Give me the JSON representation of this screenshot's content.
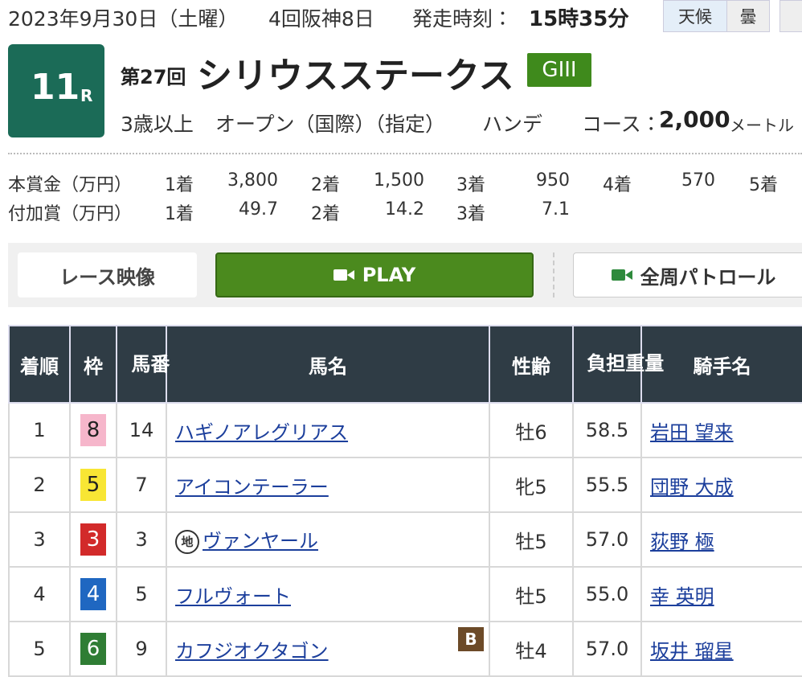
{
  "header": {
    "date": "2023年9月30日（土曜）",
    "meeting": "4回阪神8日",
    "start_label": "発走時刻：",
    "start_time": "15時35分",
    "weather_label": "天候",
    "weather": "曇"
  },
  "race": {
    "number": "11",
    "number_unit": "R",
    "edition": "第27回",
    "name": "シリウスステークス",
    "grade": "GIII",
    "age": "3歳以上",
    "class": "オープン（国際）（指定）",
    "weight_rule": "ハンデ",
    "course_label": "コース：",
    "distance": "2,000",
    "distance_unit": "メートル"
  },
  "prizes": [
    {
      "label": "本賞金（万円）",
      "items": [
        [
          "1着",
          "3,800"
        ],
        [
          "2着",
          "1,500"
        ],
        [
          "3着",
          "950"
        ],
        [
          "4着",
          "570"
        ],
        [
          "5着"
        ]
      ]
    },
    {
      "label": "付加賞（万円）",
      "items": [
        [
          "1着",
          "49.7"
        ],
        [
          "2着",
          "14.2"
        ],
        [
          "3着",
          "7.1"
        ]
      ]
    }
  ],
  "video": {
    "title": "レース映像",
    "play": "PLAY",
    "patrol": "全周パトロール"
  },
  "table": {
    "columns": [
      "着順",
      "枠",
      "馬番",
      "馬名",
      "性齢",
      "負担重量",
      "騎手名"
    ],
    "rows": [
      {
        "place": "1",
        "frame": "8",
        "number": "14",
        "horse": "ハギノアレグリアス",
        "sex_age": "牡6",
        "weight": "58.5",
        "jockey": "岩田 望来"
      },
      {
        "place": "2",
        "frame": "5",
        "number": "7",
        "horse": "アイコンテーラー",
        "sex_age": "牝5",
        "weight": "55.5",
        "jockey": "団野 大成"
      },
      {
        "place": "3",
        "frame": "3",
        "number": "3",
        "mark": "地",
        "horse": "ヴァンヤール",
        "sex_age": "牡5",
        "weight": "57.0",
        "jockey": "荻野 極"
      },
      {
        "place": "4",
        "frame": "4",
        "number": "5",
        "horse": "フルヴォート",
        "sex_age": "牡5",
        "weight": "55.0",
        "jockey": "幸 英明"
      },
      {
        "place": "5",
        "frame": "6",
        "number": "9",
        "horse": "カフジオクタゴン",
        "blinker": "B",
        "sex_age": "牡4",
        "weight": "57.0",
        "jockey": "坂井 瑠星"
      }
    ]
  }
}
